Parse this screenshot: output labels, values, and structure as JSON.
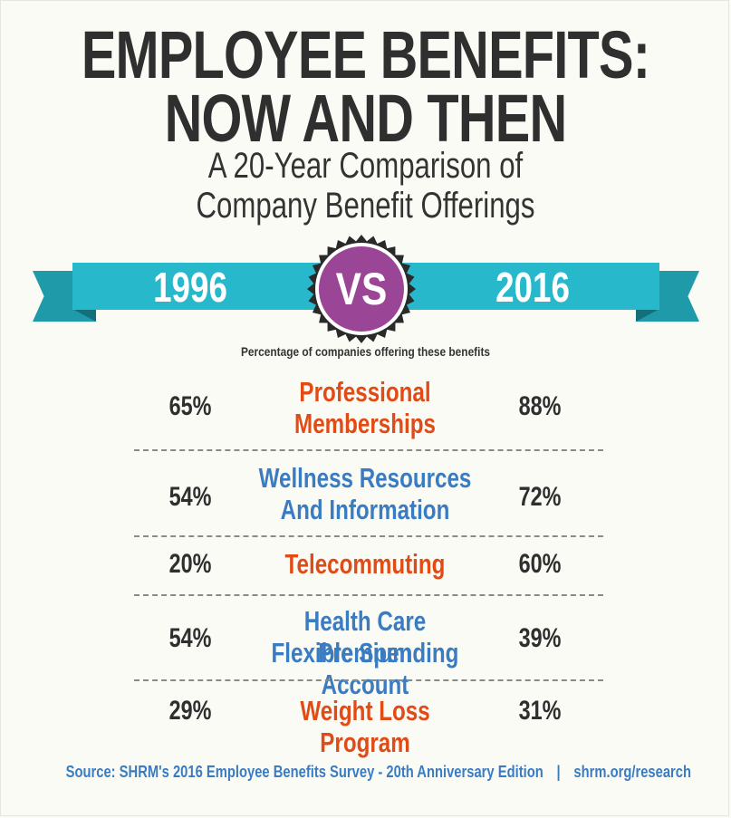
{
  "title": {
    "line1": "EMPLOYEE BENEFITS:",
    "line2": "NOW AND THEN"
  },
  "subtitle": {
    "line1": "A 20-Year Comparison of",
    "line2": "Company Benefit Offerings"
  },
  "banner": {
    "year_left": "1996",
    "vs": "VS",
    "year_right": "2016"
  },
  "caption": "Percentage of companies offering these benefits",
  "rows": [
    {
      "left": "65%",
      "benefit_line1": "Professional",
      "benefit_line2": "Memberships",
      "right": "88%",
      "color": "#e14b16"
    },
    {
      "left": "54%",
      "benefit_line1": "Wellness Resources",
      "benefit_line2": "And Information",
      "right": "72%",
      "color": "#3a7cc2"
    },
    {
      "left": "20%",
      "benefit_line1": "Telecommuting",
      "benefit_line2": "",
      "right": "60%",
      "color": "#e14b16"
    },
    {
      "left": "54%",
      "benefit_line1": "Health Care Premium",
      "benefit_line2": "Flexible Spending Account",
      "right": "39%",
      "color": "#3a7cc2"
    },
    {
      "left": "29%",
      "benefit_line1": "Weight Loss Program",
      "benefit_line2": "",
      "right": "31%",
      "color": "#e14b16"
    }
  ],
  "footer": {
    "source": "Source: SHRM's 2016 Employee Benefits Survey - 20th Anniversary Edition",
    "separator": "|",
    "link": "shrm.org/research"
  },
  "colors": {
    "ribbon": "#27b8cc",
    "ribbon_dark": "#1f9aa9",
    "badge": "#9b4596",
    "accent_orange": "#e14b16",
    "accent_blue": "#3a7cc2"
  }
}
